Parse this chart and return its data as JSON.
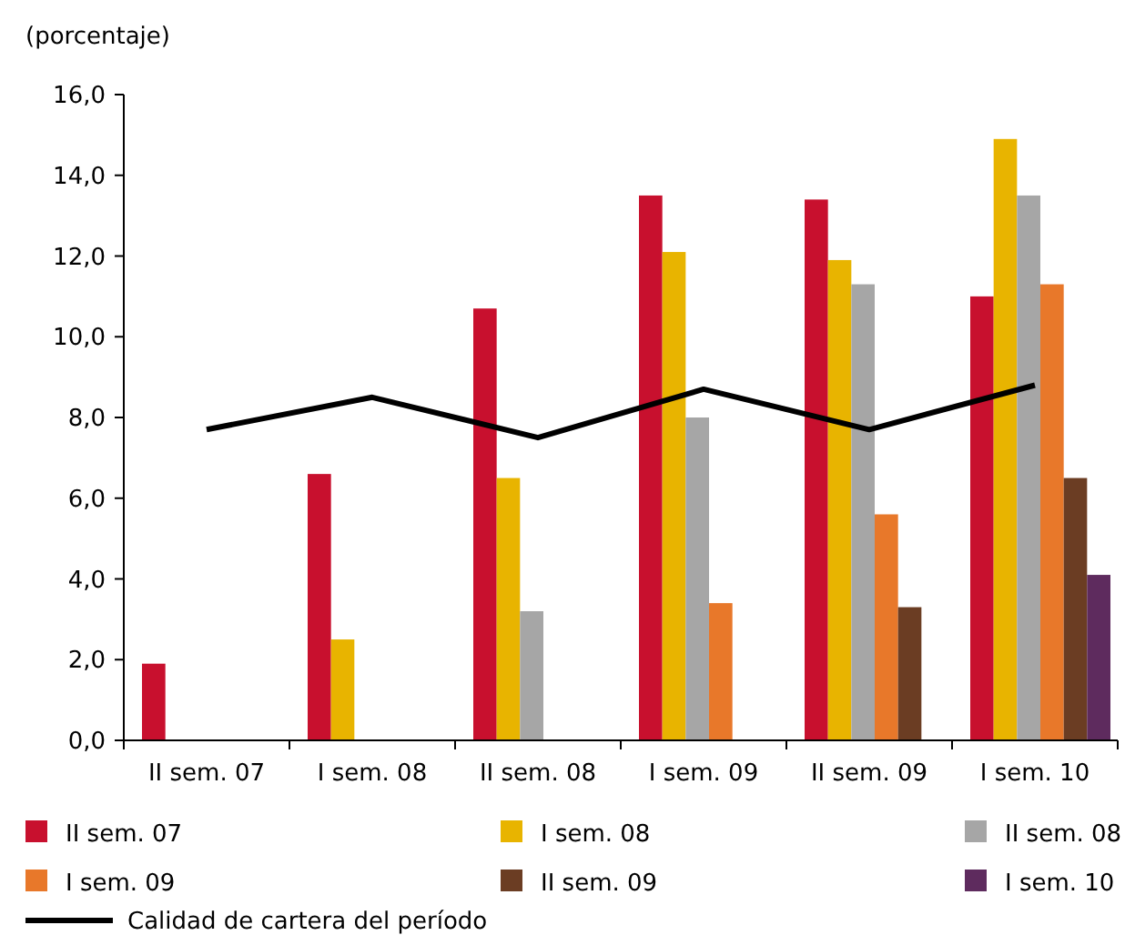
{
  "chart_data": {
    "type": "bar",
    "ylabel": "(porcentaje)",
    "categories": [
      "II sem. 07",
      "I sem. 08",
      "II sem. 08",
      "I sem. 09",
      "II sem. 09",
      "I sem. 10"
    ],
    "series": [
      {
        "name": "II sem. 07",
        "color": "#c8102e",
        "values": [
          1.9,
          6.6,
          10.7,
          13.5,
          13.4,
          11.0
        ]
      },
      {
        "name": "I sem. 08",
        "color": "#e8b400",
        "values": [
          null,
          2.5,
          6.5,
          12.1,
          11.9,
          14.9
        ]
      },
      {
        "name": "II sem. 08",
        "color": "#a6a6a6",
        "values": [
          null,
          null,
          3.2,
          8.0,
          11.3,
          13.5
        ]
      },
      {
        "name": "I sem. 09",
        "color": "#e8782a",
        "values": [
          null,
          null,
          null,
          3.4,
          5.6,
          11.3
        ]
      },
      {
        "name": "II sem. 09",
        "color": "#6b3d23",
        "values": [
          null,
          null,
          null,
          null,
          3.3,
          6.5
        ]
      },
      {
        "name": "I sem. 10",
        "color": "#5e2b5e",
        "values": [
          null,
          null,
          null,
          null,
          null,
          4.1
        ]
      },
      {
        "name": "Calidad de cartera del período",
        "type": "line",
        "color": "#000000",
        "values": [
          7.7,
          8.5,
          7.5,
          8.7,
          7.7,
          8.8
        ]
      }
    ],
    "ylim": [
      0,
      16
    ],
    "yticks": [
      {
        "value": 0,
        "label": "0,0"
      },
      {
        "value": 2,
        "label": "2,0"
      },
      {
        "value": 4,
        "label": "4,0"
      },
      {
        "value": 6,
        "label": "6,0"
      },
      {
        "value": 8,
        "label": "8,0"
      },
      {
        "value": 10,
        "label": "10,0"
      },
      {
        "value": 12,
        "label": "12,0"
      },
      {
        "value": 14,
        "label": "14,0"
      },
      {
        "value": 16,
        "label": "16,0"
      }
    ],
    "grid": false,
    "legend": "bottom",
    "marker": "none",
    "line_style": "solid"
  }
}
